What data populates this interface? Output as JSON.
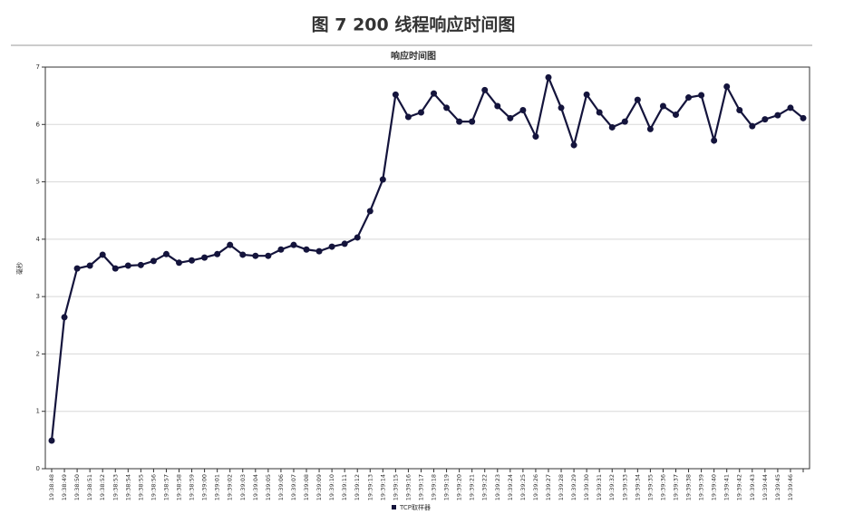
{
  "header": {
    "title": "图 7 200 线程响应时间图"
  },
  "chart_data": {
    "type": "line",
    "title": "响应时间图",
    "y_label": "毫秒",
    "categories": [
      "19:38:48",
      "19:38:49",
      "19:38:50",
      "19:38:51",
      "19:38:52",
      "19:38:53",
      "19:38:54",
      "19:38:55",
      "19:38:56",
      "19:38:57",
      "19:38:58",
      "19:38:59",
      "19:39:00",
      "19:39:01",
      "19:39:02",
      "19:39:03",
      "19:39:04",
      "19:39:05",
      "19:39:06",
      "19:39:07",
      "19:39:08",
      "19:39:09",
      "19:39:10",
      "19:39:11",
      "19:39:12",
      "19:39:13",
      "19:39:14",
      "19:39:15",
      "19:39:16",
      "19:39:17",
      "19:39:18",
      "19:39:19",
      "19:39:20",
      "19:39:21",
      "19:39:22",
      "19:39:23",
      "19:39:24",
      "19:39:25",
      "19:39:26",
      "19:39:27",
      "19:39:28",
      "19:39:29",
      "19:39:30",
      "19:39:31",
      "19:39:32",
      "19:39:33",
      "19:39:34",
      "19:39:35",
      "19:39:36",
      "19:39:37",
      "19:39:38",
      "19:39:39",
      "19:39:40",
      "19:39:41",
      "19:39:42",
      "19:39:43",
      "19:39:44",
      "19:39:45",
      "19:39:46",
      null
    ],
    "series": [
      {
        "name": "TCP取样器",
        "color": "#14143c",
        "values": [
          0.49,
          2.64,
          3.49,
          3.54,
          3.73,
          3.49,
          3.54,
          3.55,
          3.62,
          3.74,
          3.59,
          3.63,
          3.68,
          3.74,
          3.9,
          3.73,
          3.71,
          3.71,
          3.82,
          3.9,
          3.82,
          3.79,
          3.87,
          3.92,
          4.03,
          4.49,
          5.04,
          6.52,
          6.13,
          6.21,
          6.54,
          6.29,
          6.05,
          6.05,
          6.6,
          6.32,
          6.11,
          6.25,
          5.79,
          6.82,
          6.29,
          5.64,
          6.52,
          6.21,
          5.95,
          6.05,
          6.43,
          5.92,
          6.32,
          6.17,
          6.47,
          6.51,
          5.72,
          6.66,
          6.25,
          5.97,
          6.09,
          6.16,
          6.29,
          6.11
        ]
      }
    ],
    "ylim": [
      0,
      7
    ],
    "yticks": [
      0,
      1,
      2,
      3,
      4,
      5,
      6,
      7
    ],
    "grid": true
  }
}
